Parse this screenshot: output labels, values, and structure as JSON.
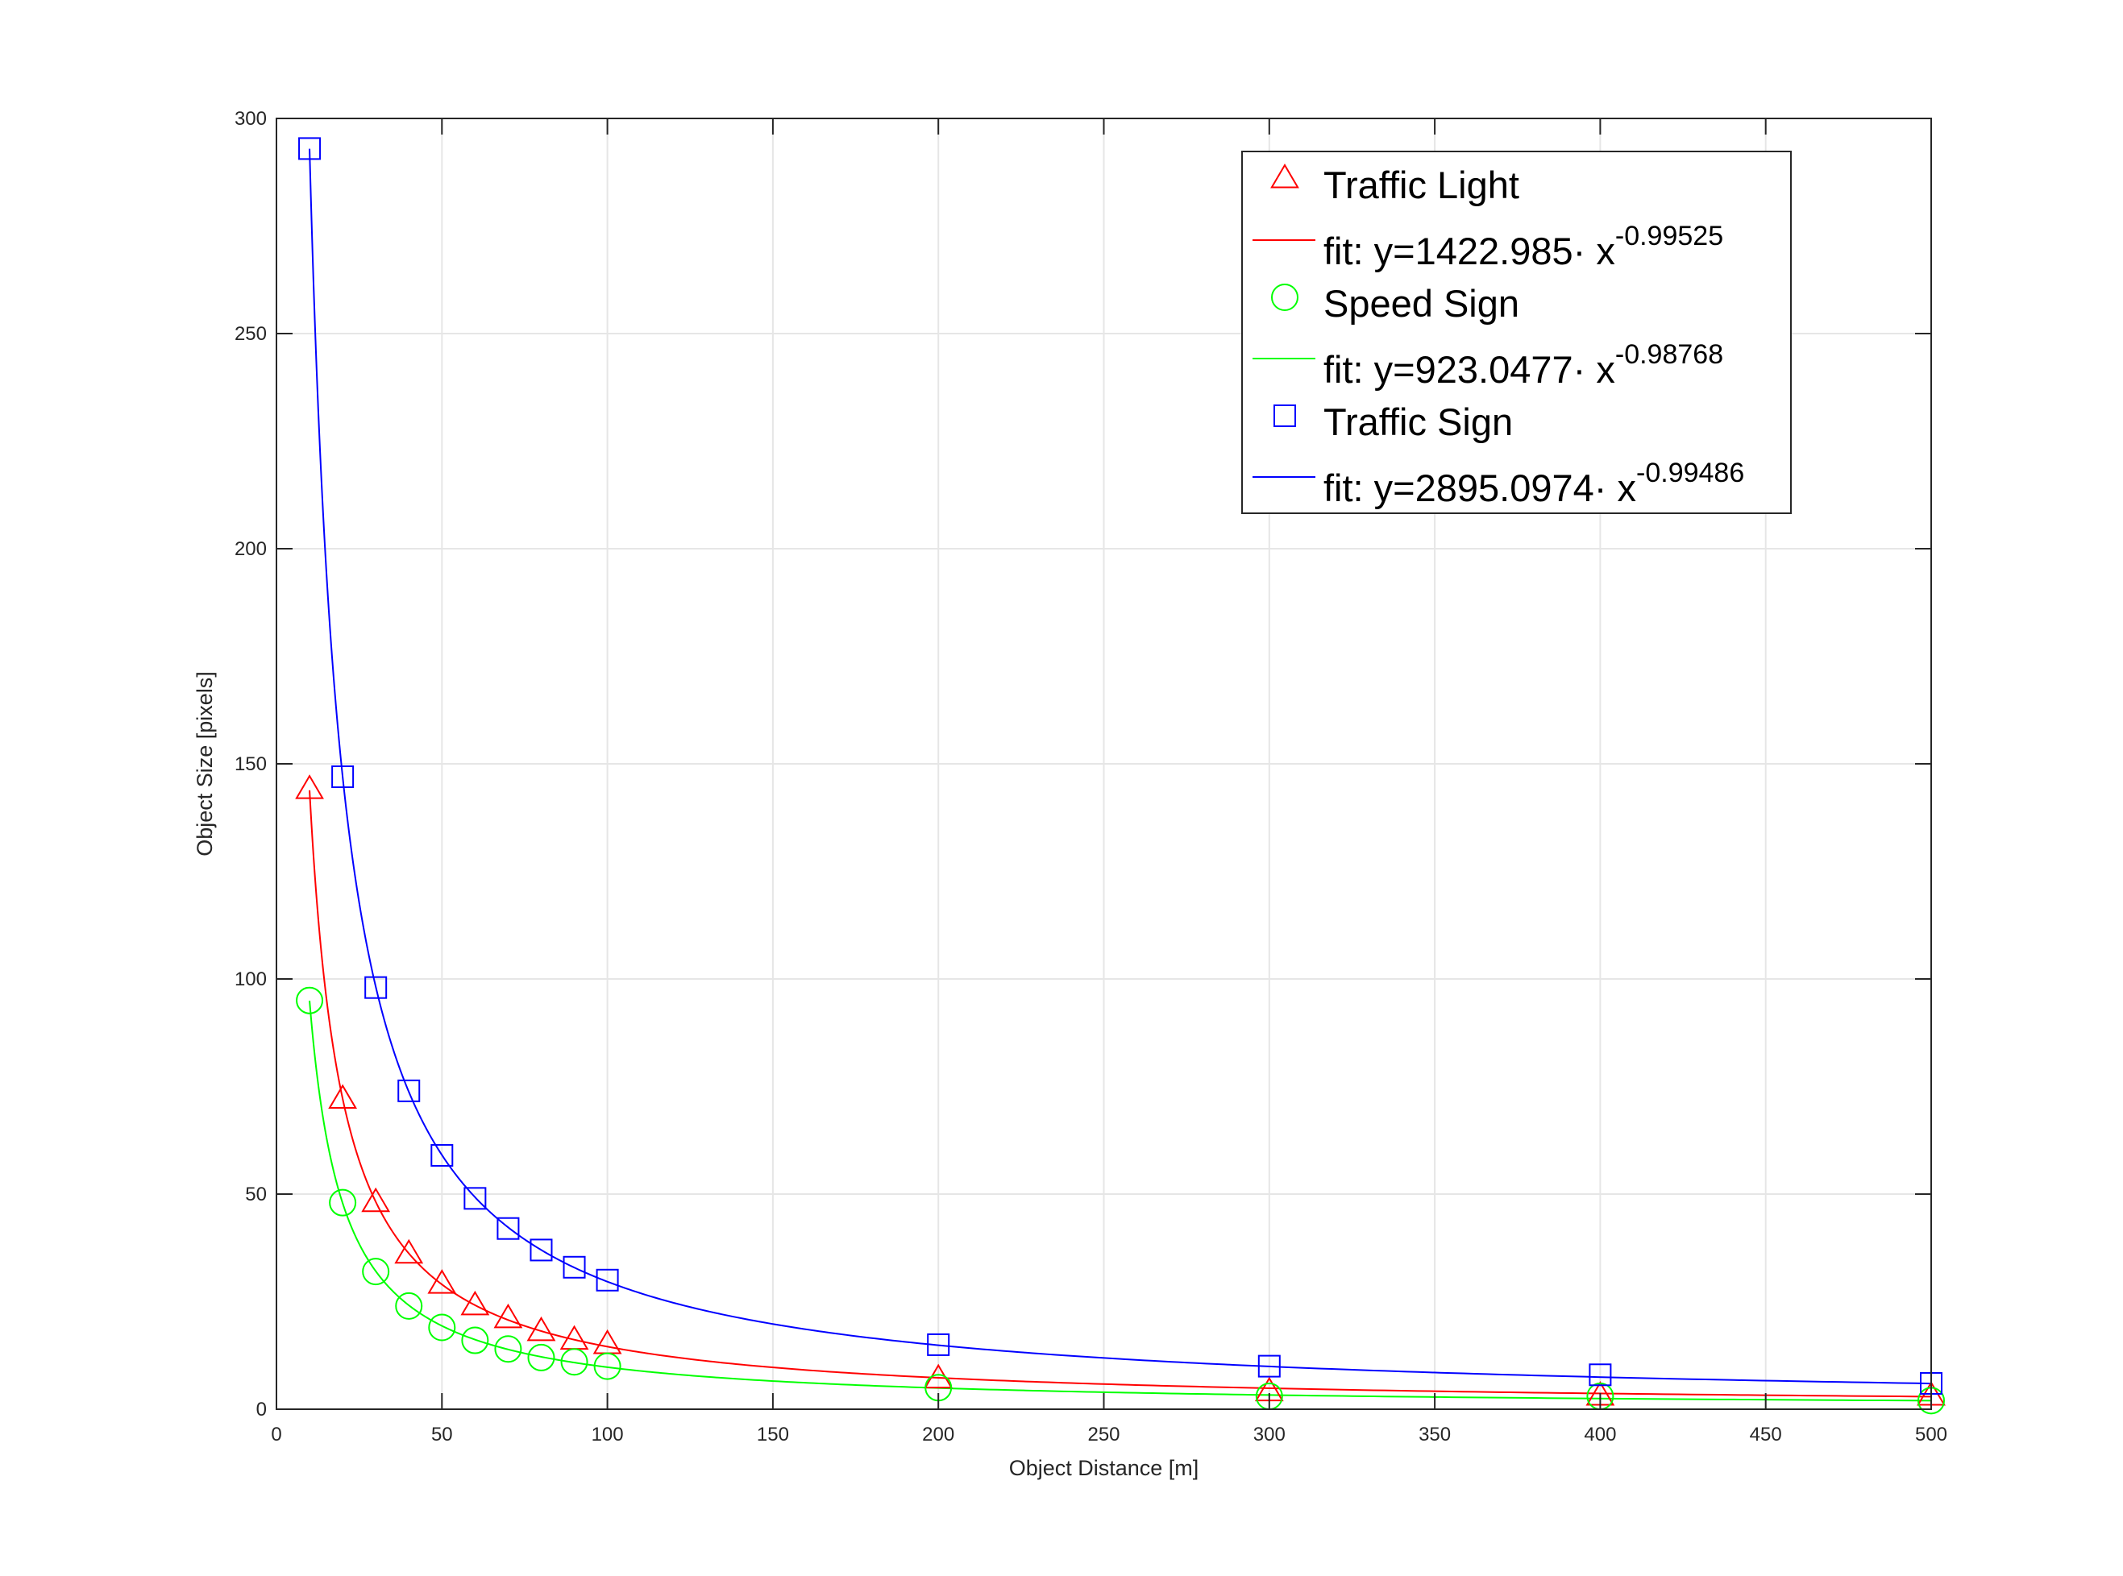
{
  "chart_data": {
    "type": "scatter",
    "xlabel": "Object Distance [m]",
    "ylabel": "Object Size [pixels]",
    "xlim": [
      0,
      500
    ],
    "ylim": [
      0,
      300
    ],
    "xticks": [
      0,
      50,
      100,
      150,
      200,
      250,
      300,
      350,
      400,
      450,
      500
    ],
    "yticks": [
      0,
      50,
      100,
      150,
      200,
      250,
      300
    ],
    "grid": true,
    "legend_position": "top-right",
    "series": [
      {
        "name": "Traffic Light",
        "marker": "triangle",
        "color": "#ff0000",
        "x": [
          10,
          20,
          30,
          40,
          50,
          60,
          70,
          80,
          90,
          100,
          200,
          300,
          400,
          500
        ],
        "y": [
          144,
          72,
          48,
          36,
          29,
          24,
          21,
          18,
          16,
          15,
          7,
          4,
          3,
          3
        ],
        "fit": {
          "label_prefix": "fit: y=1422.985· x",
          "exponent_label": "-0.99525",
          "a": 1422.985,
          "b": -0.99525
        }
      },
      {
        "name": "Speed Sign",
        "marker": "circle",
        "color": "#00ff00",
        "x": [
          10,
          20,
          30,
          40,
          50,
          60,
          70,
          80,
          90,
          100,
          200,
          300,
          400,
          500
        ],
        "y": [
          95,
          48,
          32,
          24,
          19,
          16,
          14,
          12,
          11,
          10,
          5,
          3,
          3,
          2
        ],
        "fit": {
          "label_prefix": "fit: y=923.0477· x",
          "exponent_label": "-0.98768",
          "a": 923.0477,
          "b": -0.98768
        }
      },
      {
        "name": "Traffic Sign",
        "marker": "square",
        "color": "#0000ff",
        "x": [
          10,
          20,
          30,
          40,
          50,
          60,
          70,
          80,
          90,
          100,
          200,
          300,
          400,
          500
        ],
        "y": [
          293,
          147,
          98,
          74,
          59,
          49,
          42,
          37,
          33,
          30,
          15,
          10,
          8,
          6
        ],
        "fit": {
          "label_prefix": "fit: y=2895.0974· x",
          "exponent_label": "-0.99486",
          "a": 2895.0974,
          "b": -0.99486
        }
      }
    ]
  }
}
